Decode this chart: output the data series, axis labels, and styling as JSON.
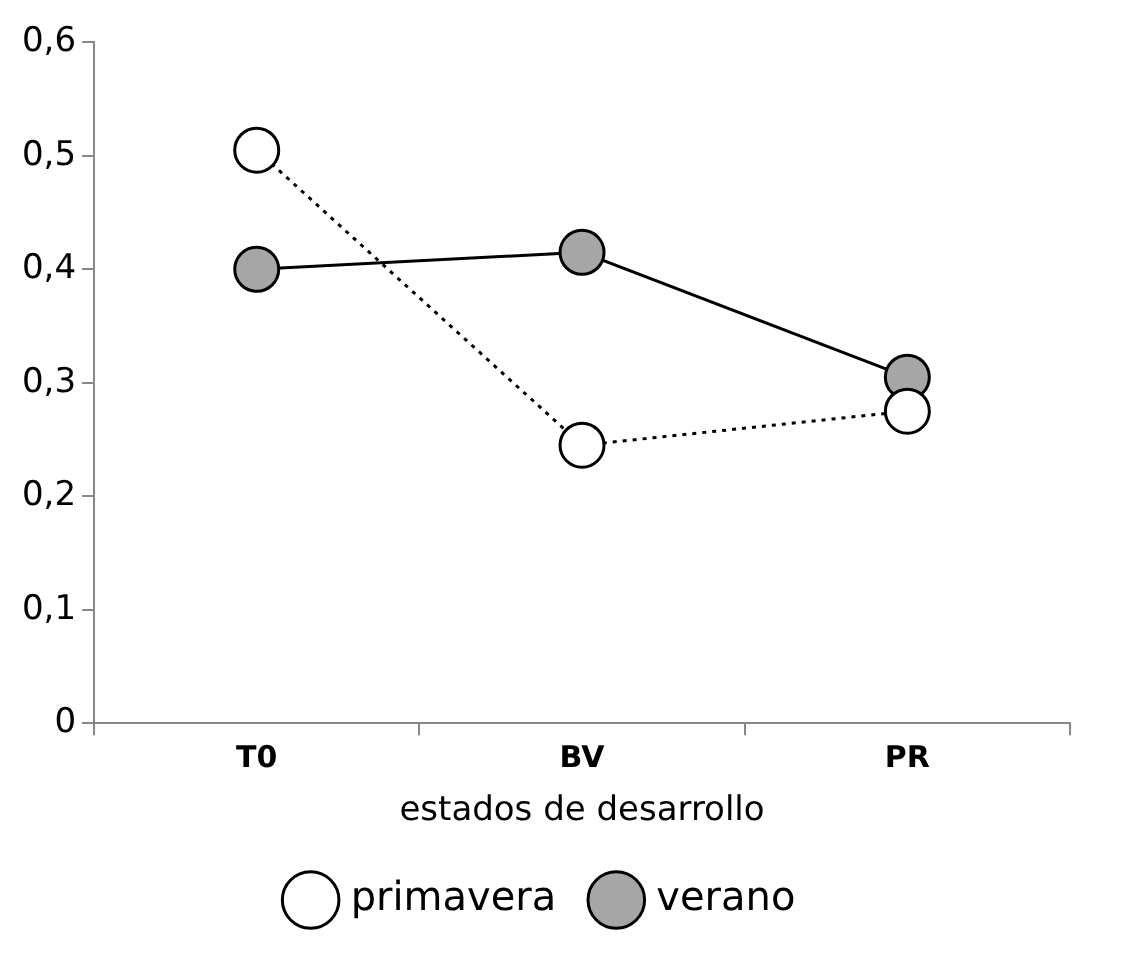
{
  "chart_data": {
    "type": "line",
    "xlabel": "estados de desarrollo",
    "categories": [
      "T0",
      "BV",
      "PR"
    ],
    "series": [
      {
        "name": "primavera",
        "color": "#ffffff",
        "values": [
          0.505,
          0.245,
          0.275
        ],
        "line_style": "dotted"
      },
      {
        "name": "verano",
        "color": "#a6a6a6",
        "values": [
          0.4,
          0.415,
          0.305
        ],
        "line_style": "solid"
      }
    ],
    "ylim": [
      0,
      0.6
    ],
    "yticks": [
      0,
      {
        "value": 0.1,
        "label": "0,1"
      },
      {
        "value": 0.2,
        "label": "0,2"
      },
      {
        "value": 0.3,
        "label": "0,3"
      },
      {
        "value": 0.4,
        "label": "0,4"
      },
      {
        "value": 0.5,
        "label": "0,5"
      },
      {
        "value": 0.6,
        "label": "0,6"
      }
    ],
    "grid": false,
    "legend": "bottom",
    "marker": "circle"
  }
}
